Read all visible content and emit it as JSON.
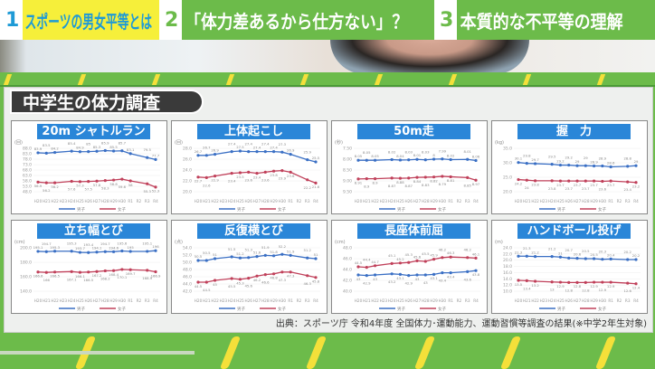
{
  "header": {
    "tabs": [
      {
        "num": "1",
        "label": "スポーツの男女平等とは"
      },
      {
        "num": "2",
        "label": "「体力差あるから仕方ない」？"
      },
      {
        "num": "3",
        "label": "本質的な不平等の理解"
      }
    ]
  },
  "board": {
    "title": "中学生の体力調査",
    "source": "出典：スポーツ庁 令和4年度 全国体力･運動能力、運動習慣等調査の結果(※中学2年生対象)"
  },
  "colors": {
    "male": "#3a6fc4",
    "female": "#c0405a",
    "title_bar": "#2a86d8"
  },
  "chart_data": [
    {
      "type": "line",
      "title": "20m シャトルラン",
      "unit": "(回)",
      "categories": [
        "H20",
        "H21",
        "H22",
        "H23",
        "H24",
        "H25",
        "H26",
        "H27",
        "H28",
        "H29",
        "H30",
        "R1",
        "R2",
        "R3",
        "R4"
      ],
      "x": [
        "H20",
        "H21",
        "H22",
        "H24",
        "H25",
        "H26",
        "H27",
        "H28",
        "H29",
        "H30",
        "R1",
        "R3",
        "R4"
      ],
      "ylim": [
        48,
        88
      ],
      "yticks": [
        "48.0",
        "53.0",
        "58.0",
        "63.0",
        "68.0",
        "73.0",
        "78.0",
        "83.0",
        "88.0"
      ],
      "series": [
        {
          "name": "男子",
          "values": [
            83.9,
            83.5,
            84.2,
            85.4,
            84.9,
            85.0,
            85.3,
            85.9,
            85.5,
            85.7,
            83.1,
            79.5,
            77.7
          ]
        },
        {
          "name": "女子",
          "values": [
            56.9,
            56.2,
            56.2,
            57.6,
            57.3,
            57.5,
            57.8,
            58.3,
            58.8,
            59.6,
            58.0,
            55.3,
            52.3
          ]
        }
      ]
    },
    {
      "type": "line",
      "title": "上体起こし",
      "unit": "(回)",
      "categories": [
        "H20",
        "H21",
        "H22",
        "H23",
        "H24",
        "H25",
        "H26",
        "H27",
        "H28",
        "H29",
        "H30",
        "R1",
        "R2",
        "R3",
        "R4"
      ],
      "x": [
        "H20",
        "H21",
        "H22",
        "H24",
        "H25",
        "H26",
        "H27",
        "H28",
        "H29",
        "H30",
        "R1",
        "R3",
        "R4"
      ],
      "ylim": [
        20,
        28
      ],
      "yticks": [
        "20.0",
        "22.0",
        "24.0",
        "26.0",
        "28.0"
      ],
      "series": [
        {
          "name": "男子",
          "values": [
            26.7,
            26.7,
            26.9,
            27.4,
            27.5,
            27.4,
            27.4,
            27.4,
            27.4,
            27.3,
            26.9,
            25.9,
            25.5
          ]
        },
        {
          "name": "女子",
          "values": [
            22.7,
            22.6,
            22.9,
            23.4,
            23.5,
            23.6,
            23.4,
            23.6,
            23.8,
            23.9,
            23.6,
            22.2,
            21.6
          ]
        }
      ]
    },
    {
      "type": "line",
      "title": "50m走",
      "unit": "(秒)",
      "reversed": true,
      "categories": [
        "H20",
        "H21",
        "H22",
        "H23",
        "H24",
        "H25",
        "H26",
        "H27",
        "H28",
        "H29",
        "H30",
        "R1",
        "R2",
        "R3",
        "R4"
      ],
      "x": [
        "H20",
        "H21",
        "H22",
        "H24",
        "H25",
        "H26",
        "H27",
        "H28",
        "H29",
        "H30",
        "R1",
        "R3",
        "R4"
      ],
      "ylim": [
        9.5,
        7.5
      ],
      "yticks": [
        "9.50",
        "9.00",
        "8.50",
        "8.00",
        "7.50"
      ],
      "series": [
        {
          "name": "男子",
          "values": [
            8.05,
            8.05,
            8.05,
            8.02,
            8.04,
            8.03,
            8.01,
            8.03,
            8.0,
            7.99,
            8.02,
            8.01,
            8.06
          ]
        },
        {
          "name": "女子",
          "values": [
            8.91,
            8.9,
            8.9,
            8.87,
            8.88,
            8.87,
            8.84,
            8.83,
            8.82,
            8.79,
            8.81,
            8.85,
            8.97
          ]
        }
      ]
    },
    {
      "type": "line",
      "title": "握　力",
      "unit": "(kg)",
      "categories": [
        "H20",
        "H21",
        "H22",
        "H23",
        "H24",
        "H25",
        "H26",
        "H27",
        "H28",
        "H29",
        "H30",
        "R1",
        "R2",
        "R3",
        "R4"
      ],
      "x": [
        "H20",
        "H21",
        "H22",
        "H24",
        "H25",
        "H26",
        "H27",
        "H28",
        "H29",
        "H30",
        "R1",
        "R3",
        "R4"
      ],
      "ylim": [
        20,
        35
      ],
      "yticks": [
        "20.0",
        "25.0",
        "30.0",
        "35.0"
      ],
      "series": [
        {
          "name": "男子",
          "values": [
            30.1,
            29.8,
            29.7,
            29.5,
            29.2,
            29.2,
            29.0,
            29.0,
            28.9,
            28.9,
            28.6,
            28.8,
            29.0
          ]
        },
        {
          "name": "女子",
          "values": [
            24.2,
            24.0,
            23.8,
            23.8,
            23.7,
            23.7,
            23.7,
            23.7,
            23.7,
            23.6,
            23.7,
            23.4,
            23.2
          ]
        }
      ]
    },
    {
      "type": "line",
      "title": "立ち幅とび",
      "unit": "(cm)",
      "categories": [
        "H20",
        "H21",
        "H22",
        "H23",
        "H24",
        "H25",
        "H26",
        "H27",
        "H28",
        "H29",
        "H30",
        "R1",
        "R2",
        "R3",
        "R4"
      ],
      "x": [
        "H20",
        "H21",
        "H22",
        "H24",
        "H25",
        "H26",
        "H27",
        "H28",
        "H29",
        "H30",
        "R1",
        "R3",
        "R4"
      ],
      "ylim": [
        140,
        200
      ],
      "yticks": [
        "140.0",
        "160.0",
        "180.0",
        "200.0"
      ],
      "series": [
        {
          "name": "男子",
          "values": [
            195.1,
            194.7,
            195.3,
            195.3,
            193.7,
            193.4,
            194.1,
            194.7,
            194.6,
            195.6,
            195.0,
            195.1,
            196.0
          ]
        },
        {
          "name": "女子",
          "values": [
            166.6,
            166.0,
            166.5,
            167.1,
            166.1,
            166.5,
            167.2,
            168.2,
            168.4,
            170.1,
            169.7,
            168.9,
            166.9
          ]
        }
      ]
    },
    {
      "type": "line",
      "title": "反復横とび",
      "unit": "(点)",
      "categories": [
        "H20",
        "H21",
        "H22",
        "H23",
        "H24",
        "H25",
        "H26",
        "H27",
        "H28",
        "H29",
        "H30",
        "R1",
        "R2",
        "R3",
        "R4"
      ],
      "x": [
        "H20",
        "H21",
        "H22",
        "H24",
        "H25",
        "H26",
        "H27",
        "H28",
        "H29",
        "H30",
        "R1",
        "R3",
        "R4"
      ],
      "ylim": [
        42,
        54
      ],
      "yticks": [
        "42.0",
        "44.0",
        "46.0",
        "48.0",
        "50.0",
        "52.0",
        "54.0"
      ],
      "series": [
        {
          "name": "男子",
          "values": [
            50.5,
            50.5,
            51.0,
            51.5,
            51.2,
            51.3,
            51.6,
            51.9,
            51.8,
            52.2,
            51.9,
            51.2,
            51.0
          ]
        },
        {
          "name": "女子",
          "values": [
            44.5,
            44.5,
            45.0,
            45.5,
            45.3,
            45.6,
            46.2,
            46.6,
            46.8,
            47.3,
            47.3,
            46.3,
            45.8
          ]
        }
      ]
    },
    {
      "type": "line",
      "title": "長座体前屈",
      "unit": "(cm)",
      "categories": [
        "H20",
        "H21",
        "H22",
        "H23",
        "H24",
        "H25",
        "H26",
        "H27",
        "H28",
        "H29",
        "H30",
        "R1",
        "R2",
        "R3",
        "R4"
      ],
      "x": [
        "H20",
        "H21",
        "H22",
        "H24",
        "H25",
        "H26",
        "H27",
        "H28",
        "H29",
        "H30",
        "R1",
        "R3",
        "R4"
      ],
      "ylim": [
        40,
        48
      ],
      "yticks": [
        "40.0",
        "42.0",
        "44.0",
        "46.0",
        "48.0"
      ],
      "series": [
        {
          "name": "男子",
          "values": [
            43.0,
            42.9,
            43.0,
            43.2,
            43.1,
            42.9,
            43.0,
            43.0,
            43.1,
            43.4,
            43.4,
            43.6,
            43.8
          ]
        },
        {
          "name": "女子",
          "values": [
            44.5,
            44.4,
            44.7,
            45.1,
            45.2,
            45.3,
            45.6,
            45.5,
            45.9,
            46.2,
            46.3,
            46.2,
            46.1
          ]
        }
      ]
    },
    {
      "type": "line",
      "title": "ハンドボール投げ",
      "unit": "(m)",
      "categories": [
        "H20",
        "H21",
        "H22",
        "H23",
        "H24",
        "H25",
        "H26",
        "H27",
        "H28",
        "H29",
        "H30",
        "R1",
        "R2",
        "R3",
        "R4"
      ],
      "x": [
        "H20",
        "H21",
        "H22",
        "H24",
        "H25",
        "H26",
        "H27",
        "H28",
        "H29",
        "H30",
        "R1",
        "R3",
        "R4"
      ],
      "ylim": [
        10,
        24
      ],
      "yticks": [
        "10.0",
        "12.0",
        "14.0",
        "16.0",
        "18.0",
        "20.0",
        "22.0",
        "24.0"
      ],
      "series": [
        {
          "name": "男子",
          "values": [
            21.3,
            21.3,
            21.2,
            21.2,
            21.0,
            20.7,
            20.6,
            20.5,
            20.5,
            20.3,
            20.4,
            20.2,
            20.2
          ]
        },
        {
          "name": "女子",
          "values": [
            13.5,
            13.4,
            13.2,
            13.0,
            12.9,
            12.8,
            12.8,
            12.8,
            12.9,
            12.9,
            12.9,
            12.6,
            12.4
          ]
        }
      ]
    }
  ]
}
